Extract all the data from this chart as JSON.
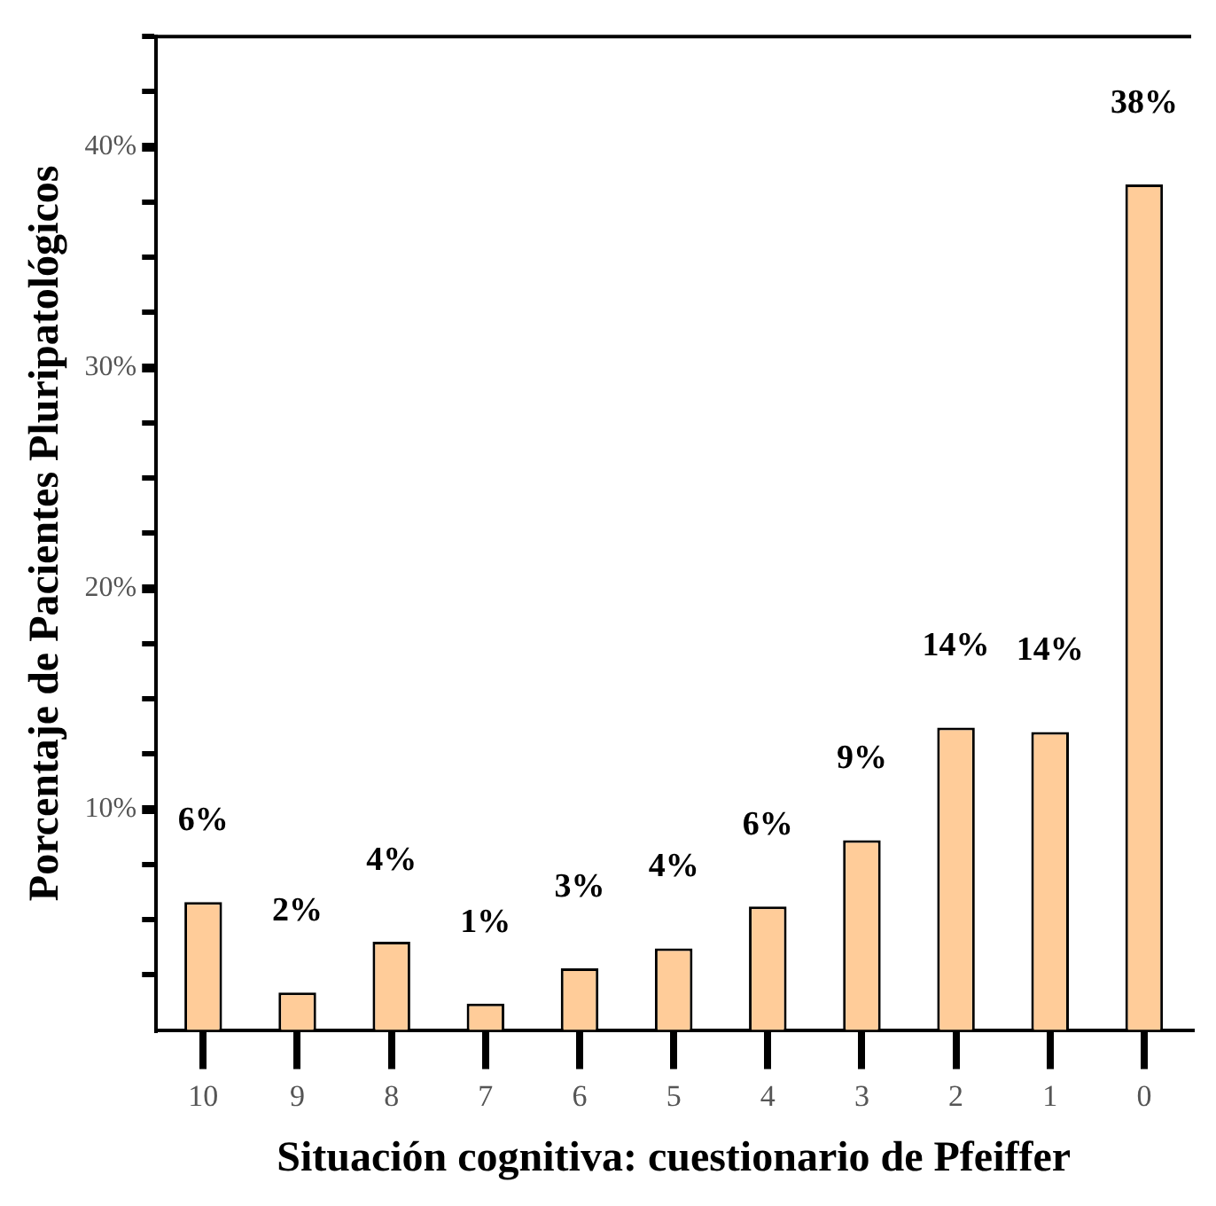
{
  "chart_data": {
    "type": "bar",
    "xlabel": "Situación cognitiva: cuestionario de Pfeiffer",
    "ylabel": "Porcentaje de Pacientes Pluripatológicos",
    "categories": [
      "10",
      "9",
      "8",
      "7",
      "6",
      "5",
      "4",
      "3",
      "2",
      "1",
      "0"
    ],
    "values": [
      5.8,
      1.7,
      4.0,
      1.2,
      2.8,
      3.7,
      5.6,
      8.6,
      13.7,
      13.5,
      38.3
    ],
    "value_labels": [
      "6%",
      "2%",
      "4%",
      "1%",
      "3%",
      "4%",
      "6%",
      "9%",
      "14%",
      "14%",
      "38%"
    ],
    "color": "#ffcc99",
    "ylim": [
      0,
      45
    ],
    "yticks": [
      {
        "value": 2.5,
        "label": null
      },
      {
        "value": 5,
        "label": null
      },
      {
        "value": 7.5,
        "label": null
      },
      {
        "value": 10,
        "label": "10%"
      },
      {
        "value": 12.5,
        "label": null
      },
      {
        "value": 15,
        "label": null
      },
      {
        "value": 17.5,
        "label": null
      },
      {
        "value": 20,
        "label": "20%"
      },
      {
        "value": 22.5,
        "label": null
      },
      {
        "value": 25,
        "label": null
      },
      {
        "value": 27.5,
        "label": null
      },
      {
        "value": 30,
        "label": "30%"
      },
      {
        "value": 32.5,
        "label": null
      },
      {
        "value": 35,
        "label": null
      },
      {
        "value": 37.5,
        "label": null
      },
      {
        "value": 40,
        "label": "40%"
      },
      {
        "value": 42.5,
        "label": null
      },
      {
        "value": 45,
        "label": null
      }
    ],
    "grid": false,
    "legend": false
  }
}
